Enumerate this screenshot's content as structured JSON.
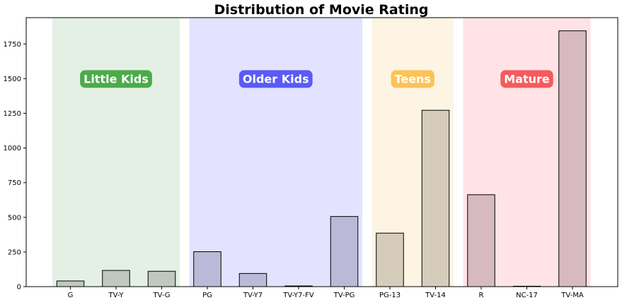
{
  "chart_data": {
    "type": "bar",
    "title": "Distribution of Movie Rating",
    "xlabel": "",
    "ylabel": "",
    "categories": [
      "G",
      "TV-Y",
      "TV-G",
      "PG",
      "TV-Y7",
      "TV-Y7-FV",
      "TV-PG",
      "PG-13",
      "TV-14",
      "R",
      "NC-17",
      "TV-MA"
    ],
    "values": [
      41,
      117,
      111,
      252,
      95,
      5,
      506,
      386,
      1272,
      663,
      3,
      1845
    ],
    "ylim": [
      0,
      1940
    ],
    "yticks": [
      0,
      250,
      500,
      750,
      1000,
      1250,
      1500,
      1750
    ],
    "grid": false,
    "label_y": 1500,
    "groups": [
      {
        "label": "Little Kids",
        "start": 0,
        "end": 2,
        "band_color": "#e5f0e5",
        "bar_color": "#bfc9bf",
        "label_bg": "#4caa4c"
      },
      {
        "label": "Older Kids",
        "start": 3,
        "end": 6,
        "band_color": "#e3e3ff",
        "bar_color": "#babad8",
        "label_bg": "#5a5af5"
      },
      {
        "label": "Teens",
        "start": 7,
        "end": 8,
        "band_color": "#fdf4e3",
        "bar_color": "#d6ccbb",
        "label_bg": "#fcc25a"
      },
      {
        "label": "Mature",
        "start": 9,
        "end": 11,
        "band_color": "#ffe3e6",
        "bar_color": "#d6babf",
        "label_bg": "#f55a5e"
      }
    ]
  }
}
